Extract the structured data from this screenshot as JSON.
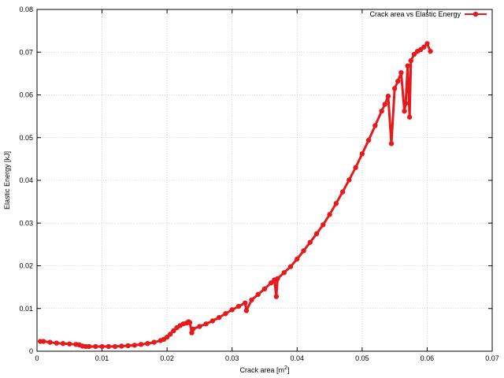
{
  "chart_data": {
    "type": "line",
    "title": "",
    "xlabel": "Crack area [m",
    "xlabel_sup": "2",
    "xlabel_end": "]",
    "ylabel": "Elastic Energy [kJ]",
    "xlim": [
      0,
      0.07
    ],
    "ylim": [
      0,
      0.08
    ],
    "xticks": [
      "0",
      "0.01",
      "0.02",
      "0.03",
      "0.04",
      "0.05",
      "0.06",
      "0.07"
    ],
    "yticks": [
      "0",
      "0.01",
      "0.02",
      "0.03",
      "0.04",
      "0.05",
      "0.06",
      "0.07",
      "0.08"
    ],
    "xtick_values": [
      0,
      0.01,
      0.02,
      0.03,
      0.04,
      0.05,
      0.06,
      0.07
    ],
    "ytick_values": [
      0,
      0.01,
      0.02,
      0.03,
      0.04,
      0.05,
      0.06,
      0.07,
      0.08
    ],
    "grid": true,
    "legend_position": "top-right",
    "series": [
      {
        "name": "Crack area vs Elastic Energy",
        "color": "#e41a1c",
        "marker": "circle",
        "x": [
          0.0005,
          0.001,
          0.002,
          0.003,
          0.004,
          0.005,
          0.006,
          0.0065,
          0.007,
          0.0075,
          0.008,
          0.009,
          0.01,
          0.011,
          0.012,
          0.013,
          0.014,
          0.015,
          0.016,
          0.017,
          0.018,
          0.019,
          0.0195,
          0.02,
          0.0205,
          0.021,
          0.0215,
          0.022,
          0.0225,
          0.023,
          0.0233,
          0.0235,
          0.0238,
          0.024,
          0.025,
          0.026,
          0.027,
          0.028,
          0.029,
          0.03,
          0.031,
          0.032,
          0.0322,
          0.033,
          0.034,
          0.035,
          0.036,
          0.0365,
          0.0368,
          0.037,
          0.038,
          0.039,
          0.04,
          0.041,
          0.042,
          0.043,
          0.044,
          0.045,
          0.046,
          0.047,
          0.048,
          0.049,
          0.05,
          0.051,
          0.052,
          0.053,
          0.0535,
          0.054,
          0.0545,
          0.055,
          0.0555,
          0.056,
          0.0565,
          0.0567,
          0.057,
          0.0573,
          0.0575,
          0.058,
          0.0585,
          0.059,
          0.0595,
          0.06,
          0.0605
        ],
        "y": [
          0.0023,
          0.0023,
          0.0021,
          0.0019,
          0.0018,
          0.0017,
          0.0016,
          0.0015,
          0.0012,
          0.0011,
          0.0011,
          0.0011,
          0.0011,
          0.0011,
          0.0011,
          0.0012,
          0.0013,
          0.0014,
          0.0016,
          0.0018,
          0.0021,
          0.0025,
          0.0028,
          0.0033,
          0.004,
          0.0048,
          0.0055,
          0.006,
          0.0064,
          0.0066,
          0.0069,
          0.0067,
          0.0043,
          0.0052,
          0.0058,
          0.0064,
          0.0071,
          0.0079,
          0.0088,
          0.0097,
          0.0105,
          0.0113,
          0.0095,
          0.012,
          0.0133,
          0.0146,
          0.016,
          0.0167,
          0.0128,
          0.017,
          0.0184,
          0.0198,
          0.0216,
          0.0235,
          0.0255,
          0.0275,
          0.0296,
          0.032,
          0.0346,
          0.0373,
          0.0401,
          0.043,
          0.0462,
          0.0494,
          0.0528,
          0.0562,
          0.0578,
          0.0597,
          0.0486,
          0.0615,
          0.0632,
          0.0652,
          0.0562,
          0.058,
          0.0668,
          0.0548,
          0.068,
          0.0695,
          0.0702,
          0.0706,
          0.0712,
          0.072,
          0.0702
        ]
      }
    ]
  }
}
